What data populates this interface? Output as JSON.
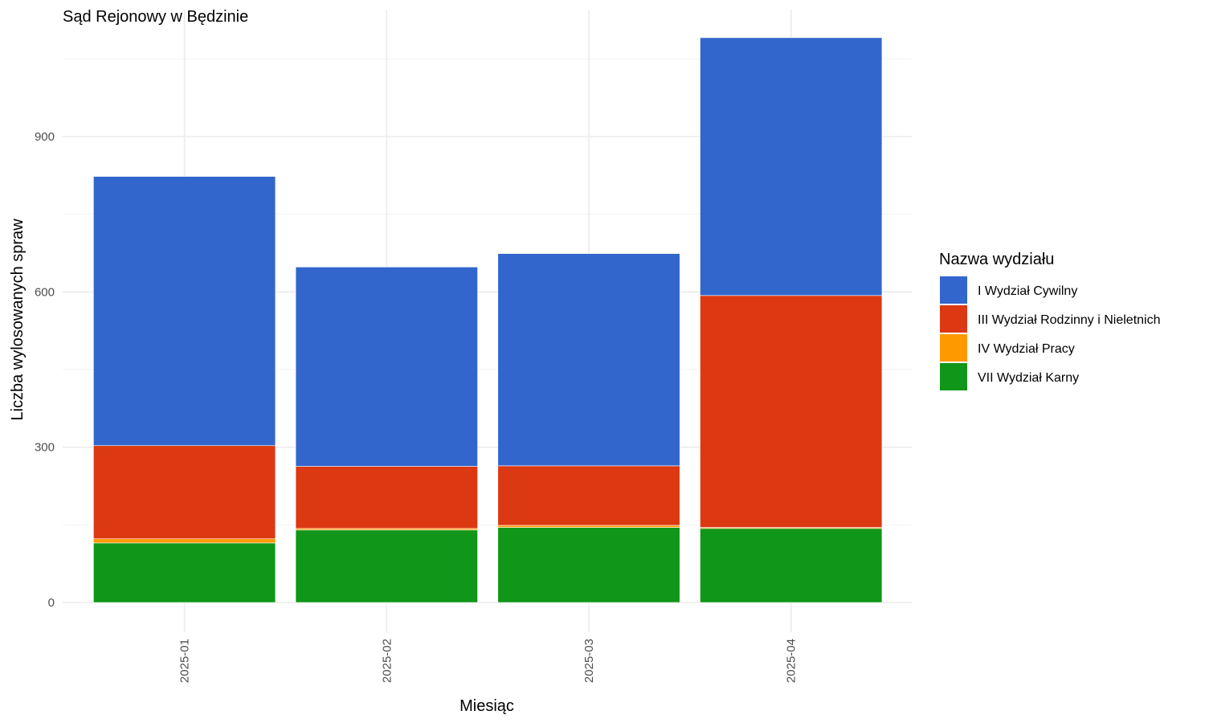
{
  "chart_data": {
    "type": "bar",
    "stacked": true,
    "title": "Sąd Rejonowy w Będzinie",
    "xlabel": "Miesiąc",
    "ylabel": "Liczba wylosowanych spraw",
    "categories": [
      "2025-01",
      "2025-02",
      "2025-03",
      "2025-04"
    ],
    "yticks": [
      0,
      300,
      600,
      900
    ],
    "ylim": [
      0,
      1140
    ],
    "grid": true,
    "legend": {
      "title": "Nazwa wydziału",
      "position": "right"
    },
    "series": [
      {
        "name": "VII Wydział Karny",
        "color": "#109618",
        "values": [
          115,
          140,
          145,
          143
        ]
      },
      {
        "name": "IV Wydział Pracy",
        "color": "#FF9900",
        "values": [
          8,
          3,
          4,
          2
        ]
      },
      {
        "name": "III Wydział Rodzinny i Nieletnich",
        "color": "#DC3912",
        "values": [
          180,
          120,
          115,
          448
        ]
      },
      {
        "name": "I Wydział Cywilny",
        "color": "#3366CC",
        "values": [
          520,
          385,
          410,
          498
        ]
      }
    ],
    "legend_order": [
      "I Wydział Cywilny",
      "III Wydział Rodzinny i Nieletnich",
      "IV Wydział Pracy",
      "VII Wydział Karny"
    ]
  }
}
